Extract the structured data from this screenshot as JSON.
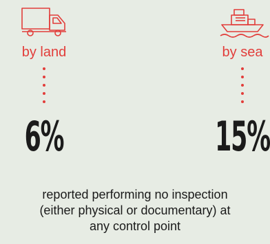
{
  "land": {
    "icon": "truck-icon",
    "label": "by land",
    "percent": "6%"
  },
  "sea": {
    "icon": "ship-icon",
    "label": "by sea",
    "percent": "15%"
  },
  "caption": {
    "line1": "reported performing no inspection",
    "line2": "(either physical or documentary) at",
    "line3": "any control point"
  },
  "colors": {
    "accent": "#e23d3a",
    "background": "#e7ece4",
    "text": "#1a1a1a"
  }
}
